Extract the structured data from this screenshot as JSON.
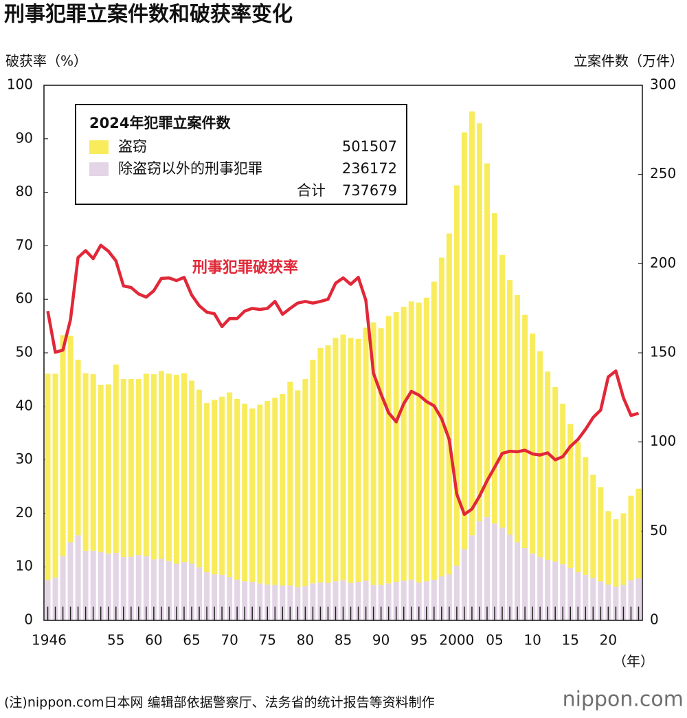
{
  "chart_data": {
    "type": "bar",
    "title": "刑事犯罪立案件数和破获率变化",
    "y_label": "破获率（%）",
    "y2_label": "立案件数（万件）",
    "x_unit": "（年）",
    "categories": [
      "1946",
      null,
      null,
      null,
      null,
      null,
      null,
      null,
      null,
      "55",
      null,
      null,
      null,
      null,
      "60",
      null,
      null,
      null,
      null,
      "65",
      null,
      null,
      null,
      null,
      "70",
      null,
      null,
      null,
      null,
      "75",
      null,
      null,
      null,
      null,
      "80",
      null,
      null,
      null,
      null,
      "85",
      null,
      null,
      null,
      null,
      "90",
      null,
      null,
      null,
      null,
      "95",
      null,
      null,
      null,
      null,
      "2000",
      null,
      null,
      null,
      null,
      "05",
      null,
      null,
      null,
      null,
      "10",
      null,
      null,
      null,
      null,
      "15",
      null,
      null,
      null,
      null,
      "20",
      null,
      null,
      null,
      null
    ],
    "ylim": [
      0,
      100
    ],
    "yticks": [
      0,
      10,
      20,
      30,
      40,
      50,
      60,
      70,
      80,
      90,
      100
    ],
    "y2lim": [
      0,
      300
    ],
    "y2ticks": [
      0,
      50,
      100,
      150,
      200,
      250,
      300
    ],
    "stacked": true,
    "series": [
      {
        "name": "除盗窃以外的刑事犯罪",
        "color": "#e3d4e6",
        "axis": "y2",
        "values": [
          22.5,
          24.0,
          36.0,
          43.8,
          47.7,
          39.0,
          39.0,
          38.4,
          37.5,
          37.8,
          35.4,
          35.7,
          36.6,
          36.0,
          34.2,
          34.5,
          33.3,
          31.8,
          32.7,
          31.8,
          29.7,
          27.0,
          25.8,
          25.5,
          24.3,
          22.8,
          21.9,
          21.6,
          20.7,
          20.1,
          19.8,
          19.5,
          19.5,
          18.6,
          19.2,
          20.7,
          21.3,
          21.0,
          21.9,
          22.5,
          21.0,
          21.6,
          22.2,
          19.8,
          19.8,
          20.7,
          21.6,
          22.2,
          22.8,
          21.3,
          21.9,
          22.8,
          24.6,
          25.8,
          30.6,
          39.9,
          47.7,
          55.5,
          57.9,
          54.3,
          51.9,
          48.0,
          43.8,
          40.5,
          37.5,
          35.4,
          33.9,
          33.0,
          31.5,
          29.4,
          27.0,
          25.5,
          23.7,
          21.9,
          20.1,
          18.9,
          19.8,
          22.5,
          23.62
        ]
      },
      {
        "name": "盗窃",
        "color": "#f8ec5c",
        "axis": "y2",
        "values": [
          115.8,
          114.3,
          123.9,
          115.8,
          98.4,
          99.6,
          99.0,
          93.6,
          94.8,
          105.6,
          99.9,
          99.6,
          98.7,
          102.3,
          103.8,
          105.3,
          105.0,
          105.9,
          105.9,
          102.6,
          99.6,
          94.8,
          97.8,
          99.9,
          103.5,
          101.4,
          99.6,
          97.2,
          100.2,
          102.9,
          105.0,
          107.4,
          114.3,
          110.4,
          116.1,
          125.4,
          131.4,
          133.2,
          136.5,
          137.7,
          137.4,
          136.2,
          141.9,
          147.3,
          144.0,
          150.0,
          151.2,
          153.6,
          156.0,
          156.9,
          159.0,
          167.1,
          178.8,
          191.1,
          213.3,
          233.7,
          237.6,
          223.2,
          198.3,
          174.0,
          153.0,
          142.8,
          138.6,
          130.8,
          123.3,
          115.5,
          105.6,
          97.8,
          90.0,
          80.7,
          72.9,
          66.0,
          57.9,
          52.8,
          41.1,
          37.8,
          40.2,
          47.4,
          50.15
        ]
      },
      {
        "name": "刑事犯罪破获率",
        "type": "line",
        "color": "#e12838",
        "axis": "y",
        "values": [
          57.8,
          50.1,
          50.5,
          56.2,
          67.8,
          69.1,
          67.6,
          70.1,
          69.0,
          67.2,
          62.5,
          62.2,
          61.0,
          60.4,
          61.6,
          63.9,
          64.0,
          63.5,
          64.1,
          60.8,
          58.8,
          57.6,
          57.3,
          54.9,
          56.4,
          56.4,
          57.8,
          58.3,
          58.1,
          58.3,
          59.6,
          57.2,
          58.3,
          59.3,
          59.6,
          59.3,
          59.6,
          60.0,
          63.0,
          64.0,
          62.8,
          64.1,
          59.8,
          46.2,
          42.3,
          38.8,
          37.1,
          40.5,
          42.8,
          42.1,
          40.9,
          40.1,
          37.7,
          33.8,
          23.6,
          19.8,
          20.8,
          23.2,
          26.1,
          28.6,
          31.2,
          31.6,
          31.5,
          31.8,
          31.1,
          30.9,
          31.3,
          30.0,
          30.6,
          32.5,
          33.8,
          35.7,
          37.9,
          39.3,
          45.5,
          46.6,
          41.6,
          38.3,
          38.7
        ]
      }
    ],
    "legend_title": "2024年犯罪立案件数",
    "legend_values": [
      501507,
      236172
    ],
    "total_label": "合计",
    "total": 737679,
    "source": "(注)nippon.com日本网 编辑部依据警察厅、法务省的统计报告等资料制作",
    "brand": "nippon.com"
  }
}
